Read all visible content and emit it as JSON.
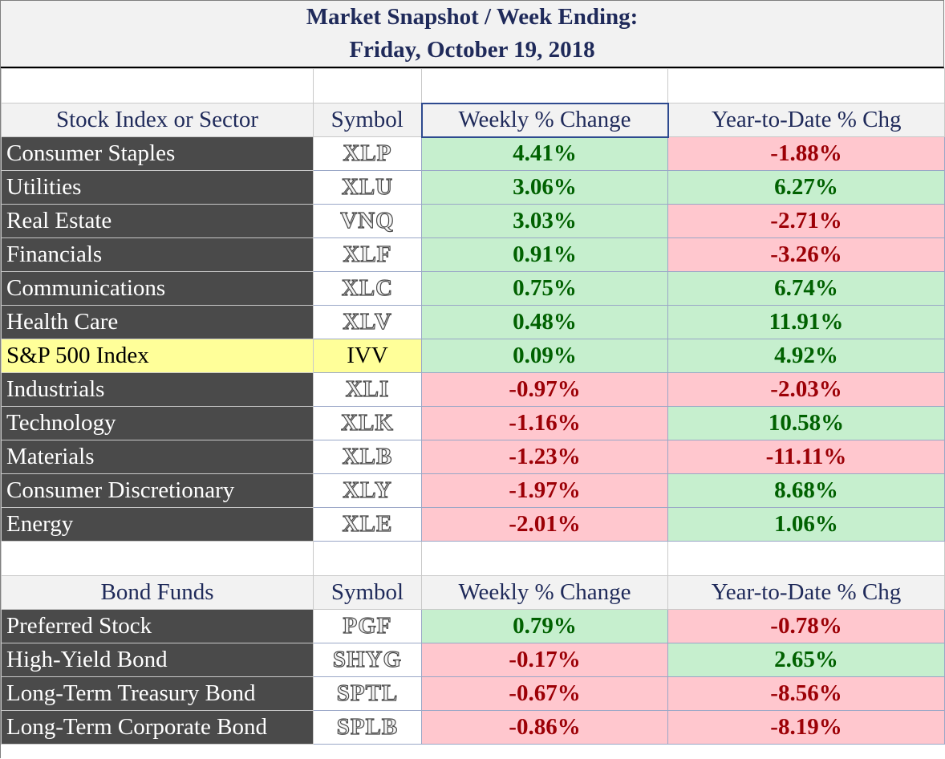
{
  "title": {
    "line1": "Market Snapshot / Week Ending:",
    "line2": "Friday, October 19, 2018"
  },
  "stock_section": {
    "header": {
      "name": "Stock Index or Sector",
      "symbol": "Symbol",
      "weekly": "Weekly % Change",
      "ytd": "Year-to-Date % Chg"
    },
    "rows": [
      {
        "name": "Consumer Staples",
        "symbol": "XLP",
        "weekly": "4.41%",
        "ytd": "-1.88%"
      },
      {
        "name": "Utilities",
        "symbol": "XLU",
        "weekly": "3.06%",
        "ytd": "6.27%"
      },
      {
        "name": "Real Estate",
        "symbol": "VNQ",
        "weekly": "3.03%",
        "ytd": "-2.71%"
      },
      {
        "name": "Financials",
        "symbol": "XLF",
        "weekly": "0.91%",
        "ytd": "-3.26%"
      },
      {
        "name": "Communications",
        "symbol": "XLC",
        "weekly": "0.75%",
        "ytd": "6.74%"
      },
      {
        "name": "Health Care",
        "symbol": "XLV",
        "weekly": "0.48%",
        "ytd": "11.91%"
      },
      {
        "name": "S&P 500 Index",
        "symbol": "IVV",
        "weekly": "0.09%",
        "ytd": "4.92%"
      },
      {
        "name": "Industrials",
        "symbol": "XLI",
        "weekly": "-0.97%",
        "ytd": "-2.03%"
      },
      {
        "name": "Technology",
        "symbol": "XLK",
        "weekly": "-1.16%",
        "ytd": "10.58%"
      },
      {
        "name": "Materials",
        "symbol": "XLB",
        "weekly": "-1.23%",
        "ytd": "-11.11%"
      },
      {
        "name": "Consumer Discretionary",
        "symbol": "XLY",
        "weekly": "-1.97%",
        "ytd": "8.68%"
      },
      {
        "name": "Energy",
        "symbol": "XLE",
        "weekly": "-2.01%",
        "ytd": "1.06%"
      }
    ]
  },
  "bond_section": {
    "header": {
      "name": "Bond Funds",
      "symbol": "Symbol",
      "weekly": "Weekly % Change",
      "ytd": "Year-to-Date % Chg"
    },
    "rows": [
      {
        "name": "Preferred Stock",
        "symbol": "PGF",
        "weekly": "0.79%",
        "ytd": "-0.78%"
      },
      {
        "name": "High-Yield Bond",
        "symbol": "SHYG",
        "weekly": "-0.17%",
        "ytd": "2.65%"
      },
      {
        "name": "Long-Term Treasury Bond",
        "symbol": "SPTL",
        "weekly": "-0.67%",
        "ytd": "-8.56%"
      },
      {
        "name": "Long-Term Corporate Bond",
        "symbol": "SPLB",
        "weekly": "-0.86%",
        "ytd": "-8.19%"
      }
    ]
  },
  "colors": {
    "positive_fill": "#c6efce",
    "positive_text": "#006100",
    "negative_fill": "#ffc7ce",
    "negative_text": "#9c0006",
    "highlight_fill": "#ffff99",
    "name_fill": "#4a4a4a",
    "header_text": "#1f2a5a"
  }
}
